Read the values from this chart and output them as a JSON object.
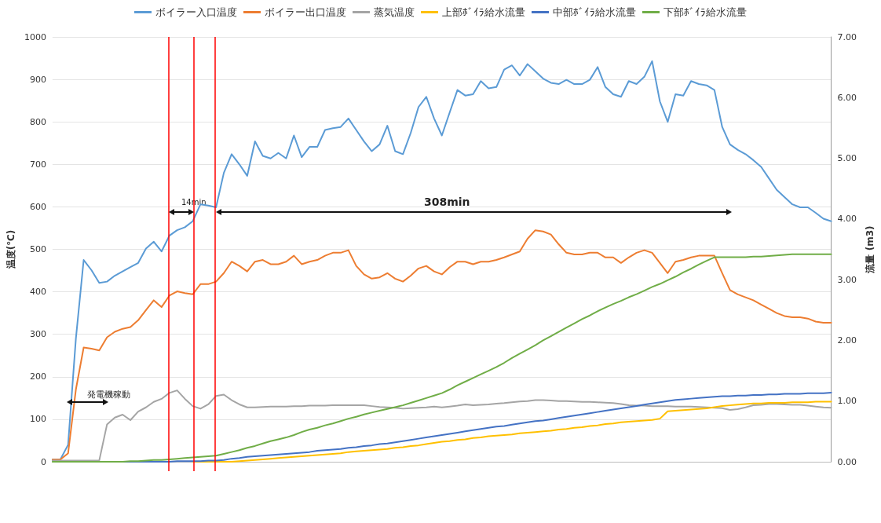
{
  "chart_data": {
    "type": "line",
    "ylabel": "温度(℃)",
    "y2label": "流量 (m3)",
    "categories": [
      null,
      null,
      null,
      null,
      null,
      null,
      null,
      null,
      null,
      null,
      null,
      null,
      null,
      null,
      null,
      null,
      null,
      null,
      null,
      null,
      null,
      null,
      null,
      null,
      null,
      null,
      null,
      null,
      null,
      null,
      null,
      null,
      null,
      null,
      null,
      null,
      null,
      null,
      null,
      null,
      null,
      null,
      null,
      null,
      null,
      null,
      null,
      null,
      null,
      null,
      null,
      null,
      null,
      null,
      null,
      null,
      null,
      null,
      null,
      null,
      null,
      null,
      null,
      null,
      null,
      null,
      null,
      null,
      null,
      null,
      null,
      null,
      null,
      null,
      null,
      null,
      null,
      null,
      null,
      null,
      null,
      null,
      null,
      null,
      null,
      null,
      null,
      null,
      null,
      null,
      null,
      null,
      null,
      null,
      null,
      null,
      null,
      null,
      null,
      null,
      null
    ],
    "series": [
      {
        "name": "ボイラー入口温度",
        "color": "#5b9bd5",
        "values": [
          5,
          5,
          40,
          290,
          475,
          451,
          421,
          424,
          438,
          448,
          458,
          468,
          502,
          518,
          495,
          532,
          545,
          552,
          566,
          606,
          603,
          599,
          680,
          724,
          700,
          673,
          754,
          720,
          714,
          727,
          714,
          768,
          717,
          741,
          741,
          781,
          785,
          788,
          808,
          781,
          754,
          731,
          747,
          791,
          731,
          724,
          774,
          835,
          859,
          808,
          768,
          822,
          875,
          862,
          865,
          896,
          879,
          882,
          923,
          933,
          909,
          936,
          919,
          902,
          892,
          889,
          899,
          889,
          889,
          899,
          929,
          882,
          865,
          859,
          896,
          889,
          906,
          943,
          848,
          800,
          865,
          862,
          896,
          889,
          886,
          875,
          788,
          747,
          734,
          724,
          710,
          694,
          667,
          640,
          623,
          606,
          599,
          599,
          586,
          572,
          566
        ]
      },
      {
        "name": "ボイラー出口温度",
        "color": "#ed7d31",
        "values": [
          5,
          5,
          20,
          170,
          269,
          266,
          262,
          293,
          306,
          313,
          317,
          333,
          357,
          380,
          364,
          391,
          401,
          397,
          394,
          418,
          418,
          424,
          444,
          471,
          461,
          448,
          471,
          475,
          465,
          465,
          471,
          485,
          465,
          471,
          475,
          485,
          492,
          492,
          498,
          461,
          441,
          431,
          434,
          444,
          431,
          424,
          438,
          455,
          461,
          448,
          441,
          458,
          471,
          471,
          465,
          471,
          471,
          475,
          481,
          488,
          495,
          525,
          545,
          542,
          535,
          512,
          492,
          488,
          488,
          492,
          492,
          481,
          481,
          468,
          481,
          492,
          498,
          492,
          468,
          444,
          471,
          475,
          481,
          485,
          485,
          485,
          444,
          404,
          394,
          387,
          380,
          370,
          360,
          350,
          343,
          340,
          340,
          337,
          330,
          327,
          327
        ]
      },
      {
        "name": "蒸気温度",
        "color": "#a5a5a5",
        "values": [
          3,
          3,
          3,
          3,
          3,
          3,
          3,
          88,
          104,
          111,
          98,
          118,
          128,
          141,
          148,
          162,
          168,
          148,
          131,
          125,
          135,
          155,
          158,
          145,
          135,
          128,
          128,
          129,
          130,
          130,
          130,
          131,
          131,
          132,
          132,
          132,
          133,
          133,
          133,
          133,
          133,
          131,
          129,
          128,
          127,
          125,
          126,
          127,
          128,
          130,
          128,
          130,
          132,
          135,
          133,
          134,
          135,
          137,
          138,
          140,
          142,
          143,
          145,
          145,
          144,
          143,
          143,
          142,
          141,
          141,
          140,
          139,
          138,
          136,
          133,
          132,
          132,
          131,
          131,
          131,
          130,
          130,
          130,
          129,
          128,
          127,
          126,
          122,
          124,
          128,
          133,
          134,
          136,
          136,
          135,
          134,
          134,
          132,
          130,
          128,
          127
        ]
      },
      {
        "name": "上部ﾎﾞｲﾗ給水流量",
        "color": "#ffc000",
        "axis": "y2",
        "values": [
          null,
          null,
          null,
          null,
          null,
          null,
          null,
          null,
          null,
          null,
          null,
          null,
          null,
          null,
          null,
          null,
          null,
          null,
          0,
          0,
          0,
          0,
          0,
          0,
          0.01,
          0.02,
          0.03,
          0.04,
          0.05,
          0.06,
          0.07,
          0.08,
          0.09,
          0.1,
          0.11,
          0.12,
          0.13,
          0.14,
          0.16,
          0.17,
          0.18,
          0.19,
          0.2,
          0.21,
          0.23,
          0.24,
          0.26,
          0.27,
          0.29,
          0.31,
          0.33,
          0.34,
          0.36,
          0.37,
          0.39,
          0.4,
          0.42,
          0.43,
          0.44,
          0.45,
          0.47,
          0.48,
          0.49,
          0.5,
          0.51,
          0.53,
          0.54,
          0.56,
          0.57,
          0.59,
          0.6,
          0.62,
          0.63,
          0.65,
          0.66,
          0.67,
          0.68,
          0.69,
          0.71,
          0.83,
          0.84,
          0.85,
          0.86,
          0.87,
          0.88,
          0.9,
          0.92,
          0.93,
          0.94,
          0.95,
          0.96,
          0.96,
          0.97,
          0.97,
          0.97,
          0.98,
          0.98,
          0.98,
          0.99,
          0.99,
          0.99
        ]
      },
      {
        "name": "中部ﾎﾞｲﾗ給水流量",
        "color": "#4472c4",
        "axis": "y2",
        "values": [
          null,
          null,
          null,
          null,
          null,
          null,
          null,
          null,
          0,
          0,
          0,
          0,
          0,
          0,
          0,
          0,
          0.01,
          0.01,
          0.01,
          0.01,
          0.02,
          0.02,
          0.03,
          0.05,
          0.06,
          0.08,
          0.09,
          0.1,
          0.11,
          0.12,
          0.13,
          0.14,
          0.15,
          0.16,
          0.18,
          0.19,
          0.2,
          0.21,
          0.23,
          0.24,
          0.26,
          0.27,
          0.29,
          0.3,
          0.32,
          0.34,
          0.36,
          0.38,
          0.4,
          0.42,
          0.44,
          0.46,
          0.48,
          0.5,
          0.52,
          0.54,
          0.56,
          0.58,
          0.59,
          0.61,
          0.63,
          0.65,
          0.67,
          0.68,
          0.7,
          0.72,
          0.74,
          0.76,
          0.78,
          0.8,
          0.82,
          0.84,
          0.86,
          0.88,
          0.9,
          0.92,
          0.94,
          0.96,
          0.98,
          1.0,
          1.02,
          1.03,
          1.04,
          1.05,
          1.06,
          1.07,
          1.08,
          1.08,
          1.09,
          1.09,
          1.1,
          1.1,
          1.11,
          1.11,
          1.12,
          1.12,
          1.12,
          1.13,
          1.13,
          1.13,
          1.14
        ]
      },
      {
        "name": "下部ﾎﾞｲﾗ給水流量",
        "color": "#70ad47",
        "axis": "y2",
        "values": [
          0,
          0,
          0,
          0,
          0,
          0,
          0,
          0,
          0,
          0,
          0.01,
          0.01,
          0.02,
          0.03,
          0.03,
          0.04,
          0.05,
          0.06,
          0.07,
          0.08,
          0.09,
          0.1,
          0.13,
          0.16,
          0.19,
          0.23,
          0.26,
          0.3,
          0.34,
          0.37,
          0.4,
          0.44,
          0.49,
          0.53,
          0.56,
          0.6,
          0.63,
          0.67,
          0.71,
          0.74,
          0.78,
          0.81,
          0.84,
          0.87,
          0.9,
          0.93,
          0.97,
          1.01,
          1.05,
          1.09,
          1.13,
          1.19,
          1.26,
          1.32,
          1.38,
          1.44,
          1.5,
          1.56,
          1.63,
          1.71,
          1.78,
          1.85,
          1.92,
          2.0,
          2.07,
          2.14,
          2.21,
          2.28,
          2.35,
          2.41,
          2.48,
          2.54,
          2.6,
          2.65,
          2.71,
          2.76,
          2.82,
          2.88,
          2.93,
          2.99,
          3.05,
          3.12,
          3.18,
          3.25,
          3.31,
          3.37,
          3.37,
          3.37,
          3.37,
          3.37,
          3.38,
          3.38,
          3.39,
          3.4,
          3.41,
          3.42,
          3.42,
          3.42,
          3.42,
          3.42,
          3.42
        ]
      }
    ],
    "ylim": [
      0,
      1000
    ],
    "yticks": [
      0,
      100,
      200,
      300,
      400,
      500,
      600,
      700,
      800,
      900,
      1000
    ],
    "y2lim": [
      0,
      7
    ],
    "y2ticks": [
      {
        "value": 0,
        "label": "0.00"
      },
      {
        "value": 1,
        "label": "1.00"
      },
      {
        "value": 2,
        "label": "2.00"
      },
      {
        "value": 3,
        "label": "3.00"
      },
      {
        "value": 4,
        "label": "4.00"
      },
      {
        "value": 5,
        "label": "5.00"
      },
      {
        "value": 6,
        "label": "6.00"
      },
      {
        "value": 7,
        "label": "7.00"
      }
    ],
    "annotations": [
      "発電機稼動",
      "14min",
      "308min"
    ],
    "grid": "y",
    "legend": "top",
    "tick_labels": "y",
    "marker": "none",
    "line_style": "solid"
  }
}
